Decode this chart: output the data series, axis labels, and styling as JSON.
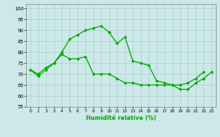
{
  "xlabel": "Humidité relative (%)",
  "background_color": "#cce8e8",
  "grid_color": "#aacccc",
  "line_color": "#00aa00",
  "marker": "D",
  "markersize": 2,
  "linewidth": 1.0,
  "xlim": [
    -0.5,
    23.5
  ],
  "ylim": [
    55,
    102
  ],
  "yticks": [
    55,
    60,
    65,
    70,
    75,
    80,
    85,
    90,
    95,
    100
  ],
  "xticks": [
    0,
    1,
    2,
    3,
    4,
    5,
    6,
    7,
    8,
    9,
    10,
    11,
    12,
    13,
    14,
    15,
    16,
    17,
    18,
    19,
    20,
    21,
    22,
    23
  ],
  "series1_x": [
    0,
    1,
    2,
    3,
    4,
    5,
    6,
    7,
    8,
    9,
    10
  ],
  "series1_y": [
    72,
    69,
    72,
    75,
    80,
    86,
    88,
    90,
    91,
    92,
    89
  ],
  "series2_x": [
    10,
    11,
    12,
    13,
    14,
    15,
    16,
    17,
    18,
    19,
    20,
    21,
    22
  ],
  "series2_y": [
    89,
    84,
    87,
    76,
    75,
    74,
    67,
    66,
    65,
    65,
    66,
    68,
    71
  ],
  "series3_x": [
    0,
    1,
    2,
    3,
    4,
    5,
    6,
    7,
    8,
    9,
    10,
    11,
    12,
    13,
    14,
    15,
    16,
    17,
    18,
    19,
    20,
    21,
    22,
    23
  ],
  "series3_y": [
    72,
    70,
    73,
    75,
    79,
    77,
    77,
    78,
    70,
    70,
    70,
    68,
    66,
    66,
    65,
    65,
    65,
    65,
    65,
    63,
    63,
    66,
    68,
    71
  ]
}
